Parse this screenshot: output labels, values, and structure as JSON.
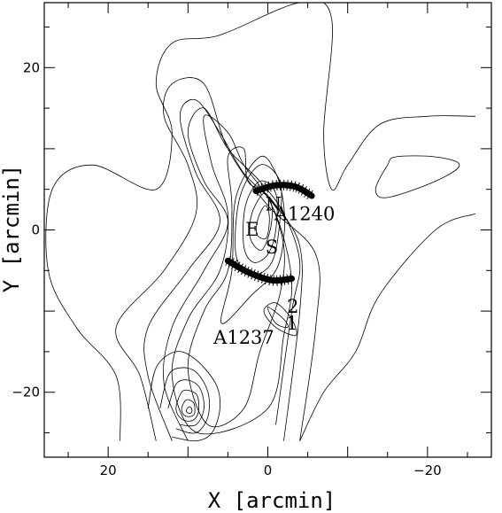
{
  "chart_data": {
    "type": "contour",
    "xlabel": "X [arcmin]",
    "ylabel": "Y [arcmin]",
    "xlim": [
      28,
      -28
    ],
    "ylim": [
      -28,
      28
    ],
    "x_ticks": [
      20,
      0,
      -20
    ],
    "y_ticks": [
      20,
      0,
      -20
    ],
    "x_minor_step": 5,
    "y_minor_step": 5,
    "grid": false,
    "annotations": [
      {
        "text": "N",
        "x": 0.3,
        "y": 2.4
      },
      {
        "text": "A1240",
        "x": -0.8,
        "y": 1.2
      },
      {
        "text": "E",
        "x": 2.8,
        "y": -0.7
      },
      {
        "text": "S",
        "x": 0.3,
        "y": -2.9
      },
      {
        "text": "2",
        "x": -2.4,
        "y": -10.2
      },
      {
        "text": "1",
        "x": -2.3,
        "y": -12.3
      },
      {
        "text": "A1237",
        "x": 6.8,
        "y": -14.0
      }
    ],
    "arcs": [
      {
        "name": "north-relic",
        "points": [
          [
            1.5,
            4.8
          ],
          [
            -1.0,
            5.5
          ],
          [
            -3.5,
            5.3
          ],
          [
            -5.5,
            4.2
          ]
        ]
      },
      {
        "name": "south-relic",
        "points": [
          [
            5.0,
            -3.8
          ],
          [
            2.5,
            -5.2
          ],
          [
            -0.5,
            -6.2
          ],
          [
            -3.0,
            -6.0
          ]
        ]
      }
    ],
    "contours": [
      {
        "level": 1,
        "points": [
          [
            18.5,
            -26
          ],
          [
            19,
            -18
          ],
          [
            24,
            -12
          ],
          [
            27.5,
            -5
          ],
          [
            27,
            5
          ],
          [
            22,
            8
          ],
          [
            14,
            5
          ],
          [
            12,
            12
          ],
          [
            14,
            18
          ],
          [
            12,
            23
          ],
          [
            6,
            24
          ],
          [
            -4,
            28
          ],
          [
            -8,
            26
          ],
          [
            -7,
            12
          ],
          [
            -8,
            5
          ],
          [
            -10,
            8
          ],
          [
            -14,
            13
          ],
          [
            -20,
            14
          ],
          [
            -26,
            14
          ]
        ]
      },
      {
        "level": 1,
        "points": [
          [
            -15,
            8
          ],
          [
            -13.5,
            5
          ],
          [
            -15,
            4
          ],
          [
            -21,
            6
          ],
          [
            -24,
            8
          ],
          [
            -21,
            9
          ],
          [
            -16,
            9
          ]
        ]
      },
      {
        "level": 1,
        "points": [
          [
            -26,
            2
          ],
          [
            -21,
            0
          ],
          [
            -14,
            -8
          ],
          [
            -11,
            -15
          ],
          [
            -7,
            -20
          ],
          [
            -4,
            -26
          ]
        ]
      },
      {
        "level": 2,
        "points": [
          [
            14,
            -26
          ],
          [
            16,
            -18
          ],
          [
            19,
            -12
          ],
          [
            13,
            -5
          ],
          [
            9,
            2
          ],
          [
            10,
            8
          ],
          [
            13,
            14
          ],
          [
            12,
            18
          ],
          [
            8,
            18
          ],
          [
            5,
            10
          ],
          [
            0,
            3
          ],
          [
            -6,
            -3
          ],
          [
            -6,
            -12
          ],
          [
            -4,
            -26
          ]
        ]
      },
      {
        "level": 3,
        "points": [
          [
            12,
            -26
          ],
          [
            15,
            -18
          ],
          [
            15,
            -12
          ],
          [
            10,
            -5
          ],
          [
            6,
            1
          ],
          [
            9,
            7
          ],
          [
            11,
            14
          ],
          [
            9,
            16
          ],
          [
            6,
            12
          ],
          [
            3,
            7
          ],
          [
            -1,
            3
          ],
          [
            -4,
            -2
          ],
          [
            -4,
            -10
          ],
          [
            -2,
            -26
          ]
        ]
      },
      {
        "level": 4,
        "points": [
          [
            10,
            -26
          ],
          [
            13,
            -19
          ],
          [
            12,
            -12
          ],
          [
            8,
            -5
          ],
          [
            5,
            1
          ],
          [
            8,
            6
          ],
          [
            10,
            12
          ],
          [
            8,
            15
          ],
          [
            5,
            10
          ],
          [
            1,
            6
          ],
          [
            -2,
            2
          ],
          [
            -4,
            -4
          ],
          [
            -3,
            -10
          ],
          [
            -1,
            -24
          ]
        ]
      },
      {
        "level": 5,
        "points": [
          [
            8.8,
            -25
          ],
          [
            12,
            -18
          ],
          [
            10,
            -11
          ],
          [
            6,
            -5
          ],
          [
            5,
            2
          ],
          [
            7,
            8
          ],
          [
            8,
            14
          ],
          [
            5,
            12
          ],
          [
            3,
            8
          ],
          [
            0,
            4
          ],
          [
            -2,
            -1
          ],
          [
            -3,
            -7
          ],
          [
            -2,
            -13
          ],
          [
            0,
            -22
          ]
        ]
      },
      {
        "level": 6,
        "points": [
          [
            7.5,
            -24
          ],
          [
            10,
            -17
          ],
          [
            8,
            -10
          ],
          [
            5,
            -5
          ],
          [
            4.5,
            3
          ],
          [
            5,
            9
          ],
          [
            3,
            10
          ],
          [
            2.5,
            6
          ],
          [
            0,
            4
          ],
          [
            -2,
            -2
          ],
          [
            -1.5,
            -8
          ],
          [
            1,
            -15
          ],
          [
            3,
            -22
          ]
        ]
      },
      {
        "level": 7,
        "points": [
          [
            5.8,
            -11.5
          ],
          [
            4.5,
            -5
          ],
          [
            4,
            4
          ],
          [
            1,
            9
          ],
          [
            -1,
            7
          ],
          [
            -2,
            3
          ],
          [
            -2,
            -1
          ],
          [
            -1,
            -5
          ],
          [
            2,
            -8
          ]
        ]
      },
      {
        "level": 8,
        "points": [
          [
            4,
            -3
          ],
          [
            3.5,
            4
          ],
          [
            1,
            8
          ],
          [
            -1.5,
            6
          ],
          [
            -1.5,
            1
          ],
          [
            -0.5,
            -4
          ],
          [
            2,
            -5.5
          ]
        ]
      },
      {
        "level": 9,
        "points": [
          [
            3,
            -2
          ],
          [
            2.8,
            3
          ],
          [
            1,
            6
          ],
          [
            -1,
            4.5
          ],
          [
            -1,
            0
          ],
          [
            0,
            -3
          ],
          [
            1.8,
            -4
          ]
        ]
      },
      {
        "level": 10,
        "points": [
          [
            2.2,
            -1
          ],
          [
            2,
            2
          ],
          [
            0.5,
            4.5
          ],
          [
            -0.5,
            3
          ],
          [
            -0.3,
            0
          ],
          [
            0.8,
            -2.5
          ]
        ]
      },
      {
        "level": 11,
        "points": [
          [
            1.4,
            -0.5
          ],
          [
            1.2,
            1.5
          ],
          [
            0.3,
            3
          ],
          [
            -0.2,
            1.5
          ],
          [
            0.2,
            -1
          ]
        ]
      },
      {
        "level": 12,
        "points": [
          [
            -1,
            -9
          ],
          [
            -3,
            -11
          ],
          [
            -3.5,
            -13
          ],
          [
            -1,
            -12
          ],
          [
            0.5,
            -10
          ]
        ]
      },
      {
        "level": 13,
        "points": [
          [
            0,
            -9.5
          ],
          [
            -2,
            -11
          ],
          [
            -2.5,
            -12
          ],
          [
            -1,
            -11.5
          ]
        ]
      },
      {
        "level": 14,
        "points": [
          [
            15,
            -22
          ],
          [
            14,
            -17
          ],
          [
            11.5,
            -15
          ],
          [
            9,
            -16
          ],
          [
            6.5,
            -19
          ],
          [
            6,
            -22
          ],
          [
            7,
            -25
          ],
          [
            9,
            -26
          ],
          [
            12,
            -25.5
          ]
        ]
      },
      {
        "level": 15,
        "points": [
          [
            13.5,
            -22
          ],
          [
            12.5,
            -18
          ],
          [
            11,
            -17
          ],
          [
            9,
            -17.5
          ],
          [
            7.5,
            -20
          ],
          [
            7.5,
            -23
          ],
          [
            9,
            -25
          ],
          [
            11.5,
            -24.5
          ]
        ]
      },
      {
        "level": 16,
        "points": [
          [
            12.5,
            -22
          ],
          [
            11.5,
            -19
          ],
          [
            10,
            -18.5
          ],
          [
            8.5,
            -19.5
          ],
          [
            8,
            -22
          ],
          [
            9,
            -24
          ],
          [
            11,
            -24
          ]
        ]
      },
      {
        "level": 17,
        "points": [
          [
            11.5,
            -22
          ],
          [
            10.8,
            -20
          ],
          [
            9.8,
            -19.8
          ],
          [
            8.8,
            -20.5
          ],
          [
            8.7,
            -22.5
          ],
          [
            9.5,
            -23.5
          ],
          [
            10.8,
            -23.3
          ]
        ]
      },
      {
        "level": 18,
        "points": [
          [
            10.8,
            -22
          ],
          [
            10.3,
            -21
          ],
          [
            9.7,
            -21
          ],
          [
            9.2,
            -21.5
          ],
          [
            9.2,
            -22.7
          ],
          [
            9.8,
            -23
          ],
          [
            10.5,
            -22.8
          ]
        ]
      },
      {
        "level": 19,
        "points": [
          [
            10.2,
            -22.2
          ],
          [
            9.9,
            -21.8
          ],
          [
            9.6,
            -21.9
          ],
          [
            9.5,
            -22.3
          ],
          [
            9.7,
            -22.6
          ],
          [
            10.1,
            -22.5
          ]
        ]
      }
    ]
  }
}
